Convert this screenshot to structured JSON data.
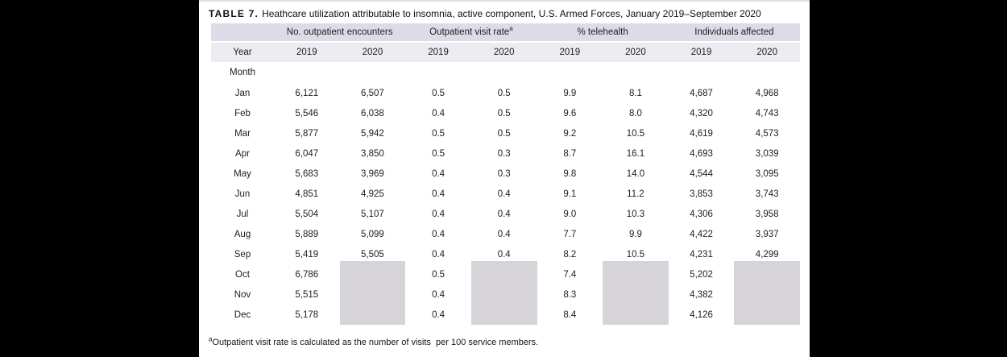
{
  "title": {
    "label": "TABLE 7.",
    "text": "Heathcare utilization attributable to insomnia, active component, U.S. Armed Forces, January 2019–September 2020"
  },
  "table": {
    "group_headers": [
      {
        "label": "No. outpatient encounters",
        "sup": ""
      },
      {
        "label": "Outpatient visit rate",
        "sup": "a"
      },
      {
        "label": "% telehealth",
        "sup": ""
      },
      {
        "label": "Individuals affected",
        "sup": ""
      }
    ],
    "year_label": "Year",
    "years": [
      "2019",
      "2020",
      "2019",
      "2020",
      "2019",
      "2020",
      "2019",
      "2020"
    ],
    "month_label": "Month",
    "rows": [
      {
        "month": "Jan",
        "values": [
          "6,121",
          "6,507",
          "0.5",
          "0.5",
          "9.9",
          "8.1",
          "4,687",
          "4,968"
        ]
      },
      {
        "month": "Feb",
        "values": [
          "5,546",
          "6,038",
          "0.4",
          "0.5",
          "9.6",
          "8.0",
          "4,320",
          "4,743"
        ]
      },
      {
        "month": "Mar",
        "values": [
          "5,877",
          "5,942",
          "0.5",
          "0.5",
          "9.2",
          "10.5",
          "4,619",
          "4,573"
        ]
      },
      {
        "month": "Apr",
        "values": [
          "6,047",
          "3,850",
          "0.5",
          "0.3",
          "8.7",
          "16.1",
          "4,693",
          "3,039"
        ]
      },
      {
        "month": "May",
        "values": [
          "5,683",
          "3,969",
          "0.4",
          "0.3",
          "9.8",
          "14.0",
          "4,544",
          "3,095"
        ]
      },
      {
        "month": "Jun",
        "values": [
          "4,851",
          "4,925",
          "0.4",
          "0.4",
          "9.1",
          "11.2",
          "3,853",
          "3,743"
        ]
      },
      {
        "month": "Jul",
        "values": [
          "5,504",
          "5,107",
          "0.4",
          "0.4",
          "9.0",
          "10.3",
          "4,306",
          "3,958"
        ]
      },
      {
        "month": "Aug",
        "values": [
          "5,889",
          "5,099",
          "0.4",
          "0.4",
          "7.7",
          "9.9",
          "4,422",
          "3,937"
        ]
      },
      {
        "month": "Sep",
        "values": [
          "5,419",
          "5,505",
          "0.4",
          "0.4",
          "8.2",
          "10.5",
          "4,231",
          "4,299"
        ]
      },
      {
        "month": "Oct",
        "values": [
          "6,786",
          null,
          "0.5",
          null,
          "7.4",
          null,
          "5,202",
          null
        ]
      },
      {
        "month": "Nov",
        "values": [
          "5,515",
          null,
          "0.4",
          null,
          "8.3",
          null,
          "4,382",
          null
        ]
      },
      {
        "month": "Dec",
        "values": [
          "5,178",
          null,
          "0.4",
          null,
          "8.4",
          null,
          "4,126",
          null
        ]
      }
    ]
  },
  "footnote": {
    "sup": "a",
    "text": "Outpatient visit rate is calculated as the number of visits  per 100 service members."
  },
  "colors": {
    "group_header_band": "#dcdce8",
    "year_band": "#ebebf2",
    "no_data_block": "#d6d4d9",
    "page_background": "#000000"
  }
}
